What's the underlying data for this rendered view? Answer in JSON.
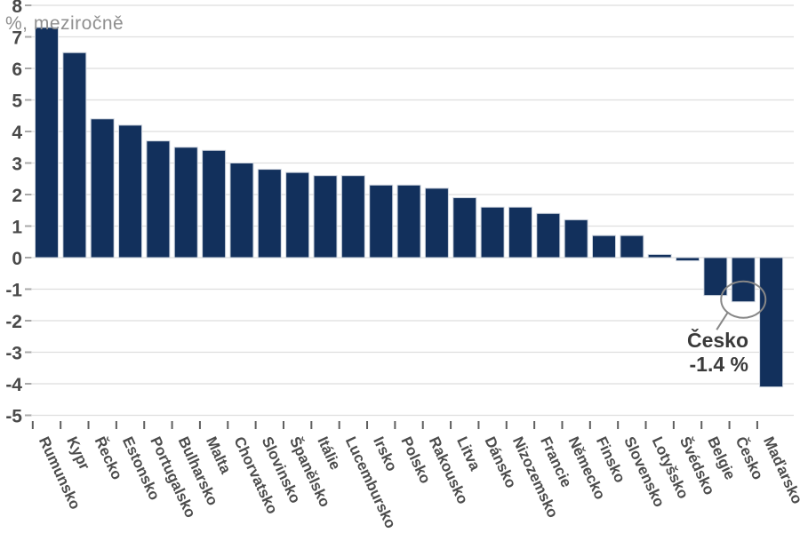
{
  "chart_data": {
    "type": "bar",
    "title": "",
    "ylabel": "%, meziročně",
    "categories": [
      "Rumunsko",
      "Kypr",
      "Řecko",
      "Estonsko",
      "Portugalsko",
      "Bulharsko",
      "Malta",
      "Chorvatsko",
      "Slovinsko",
      "Španělsko",
      "Itálie",
      "Lucembursko",
      "Irsko",
      "Polsko",
      "Rakousko",
      "Litva",
      "Dánsko",
      "Nizozemsko",
      "Francie",
      "Německo",
      "Finsko",
      "Slovensko",
      "Lotyšsko",
      "Švédsko",
      "Belgie",
      "Česko",
      "Maďarsko"
    ],
    "values": [
      7.3,
      6.5,
      4.4,
      4.2,
      3.7,
      3.5,
      3.4,
      3.0,
      2.8,
      2.7,
      2.6,
      2.6,
      2.3,
      2.3,
      2.2,
      1.9,
      1.6,
      1.6,
      1.4,
      1.2,
      0.7,
      0.7,
      0.1,
      -0.1,
      -1.2,
      -1.4,
      -4.1
    ],
    "ylim": [
      -5,
      8
    ],
    "yticks": [
      8,
      7,
      6,
      5,
      4,
      3,
      2,
      1,
      0,
      -1,
      -2,
      -3,
      -4,
      -5
    ],
    "grid": true,
    "legend": "none",
    "annotation": {
      "country": "Česko",
      "value_text": "-1.4 %",
      "target": "Česko"
    },
    "colors": {
      "bar": "#12305c",
      "bar_edge": "#cdd4de",
      "grid": "#dedede",
      "axis_text": "#4a4a4a",
      "unit_text": "#8f8f8f",
      "y_tick": "#a8a8a8",
      "x_tick": "#5f5f5f",
      "annotation_text": "#3a3a3a",
      "annotation_circle": "#878787"
    }
  }
}
